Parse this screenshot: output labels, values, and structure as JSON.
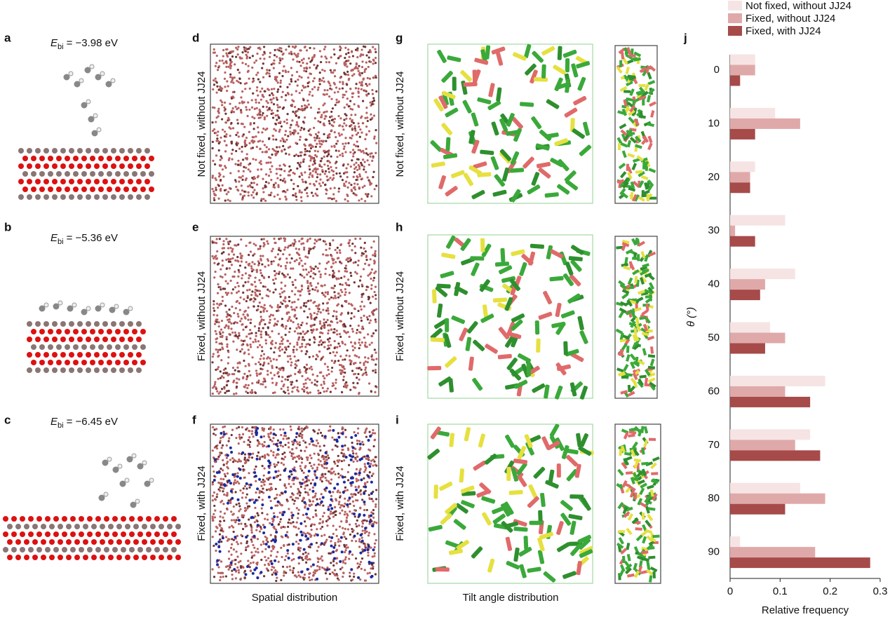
{
  "panels": [
    {
      "label": "a",
      "energy": {
        "symbol": "E",
        "subscript": "bi",
        "value": "= −3.98 eV"
      }
    },
    {
      "label": "b",
      "energy": {
        "symbol": "E",
        "subscript": "bi",
        "value": "= −5.36 eV"
      }
    },
    {
      "label": "c",
      "energy": {
        "symbol": "E",
        "subscript": "bi",
        "value": "= −6.45 eV"
      }
    },
    {
      "label": "d",
      "row_label": "Not fixed, without JJ24"
    },
    {
      "label": "e",
      "row_label": "Fixed, without JJ24"
    },
    {
      "label": "f",
      "row_label": "Fixed, with JJ24"
    },
    {
      "label": "g",
      "row_label": "Not fixed, without JJ24"
    },
    {
      "label": "h",
      "row_label": "Fixed, without JJ24"
    },
    {
      "label": "i",
      "row_label": "Fixed, with JJ24"
    }
  ],
  "captions": {
    "spatial": "Spatial distribution",
    "tilt": "Tilt angle distribution"
  },
  "chart_data": {
    "type": "hbar",
    "panel_label": "j",
    "ylabel": "θ (°)",
    "xlabel": "Relative frequency",
    "categories": [
      "0",
      "10",
      "20",
      "30",
      "40",
      "50",
      "60",
      "70",
      "80",
      "90"
    ],
    "series": [
      {
        "name": "Not fixed, without JJ24",
        "color": "#f6e4e4",
        "values": [
          0.05,
          0.09,
          0.05,
          0.11,
          0.13,
          0.08,
          0.19,
          0.16,
          0.14,
          0.02
        ]
      },
      {
        "name": "Fixed, without JJ24",
        "color": "#e0a9a9",
        "values": [
          0.05,
          0.14,
          0.04,
          0.01,
          0.07,
          0.11,
          0.11,
          0.13,
          0.19,
          0.17
        ]
      },
      {
        "name": "Fixed, with JJ24",
        "color": "#a64a4a",
        "values": [
          0.02,
          0.05,
          0.04,
          0.05,
          0.06,
          0.07,
          0.16,
          0.18,
          0.11,
          0.28
        ]
      }
    ],
    "xlim": [
      0,
      0.3
    ],
    "xticks": [
      0,
      0.1,
      0.2,
      0.3
    ],
    "legend": "top"
  }
}
